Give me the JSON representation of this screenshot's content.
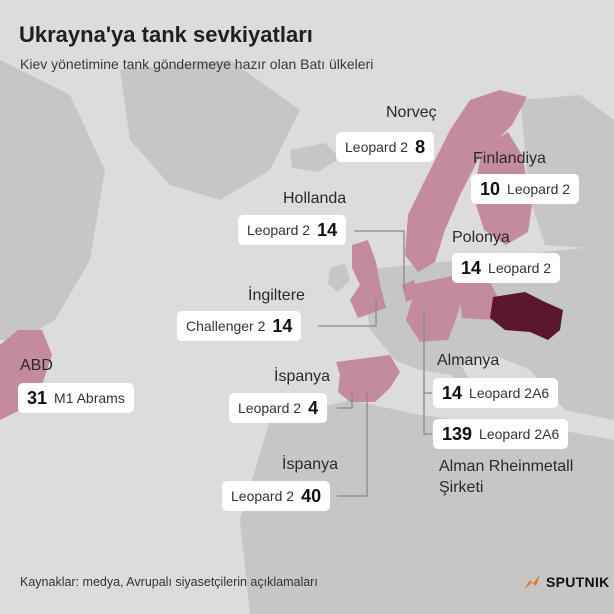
{
  "header": {
    "title": "Ukrayna'ya tank sevkiyatları",
    "subtitle": "Kiev yönetimine tank göndermeye hazır olan Batı ülkeleri"
  },
  "entries": {
    "norvec": {
      "country": "Norveç",
      "model": "Leopard 2",
      "count": "8"
    },
    "finlandiya": {
      "country": "Finlandiya",
      "model": "Leopard 2",
      "count": "10"
    },
    "hollanda": {
      "country": "Hollanda",
      "model": "Leopard 2",
      "count": "14"
    },
    "polonya": {
      "country": "Polonya",
      "model": "Leopard 2",
      "count": "14"
    },
    "ingiltere": {
      "country": "İngiltere",
      "model": "Challenger 2",
      "count": "14"
    },
    "abd": {
      "country": "ABD",
      "model": "M1 Abrams",
      "count": "31"
    },
    "almanya": {
      "country": "Almanya",
      "model": "Leopard 2A6",
      "count": "14"
    },
    "ispanya1": {
      "country": "İspanya",
      "model": "Leopard 2",
      "count": "4"
    },
    "rheinmetall": {
      "country": "Alman Rheinmetall Şirketi",
      "model": "Leopard 2A6",
      "count": "139"
    },
    "ispanya2": {
      "country": "İspanya",
      "model": "Leopard 2",
      "count": "40"
    }
  },
  "colors": {
    "background": "#dcdcdc",
    "land": "#c6c6c6",
    "supplier_country": "#c48a9e",
    "ukraine": "#5c1730",
    "pill": "#ffffff",
    "logo_accent": "#f26a22"
  },
  "footer": {
    "source": "Kaynaklar: medya, Avrupalı siyasetçilerin açıklamaları",
    "logo_text": "SPUTNIK",
    "logo_icon": "sputnik-flame-icon"
  }
}
